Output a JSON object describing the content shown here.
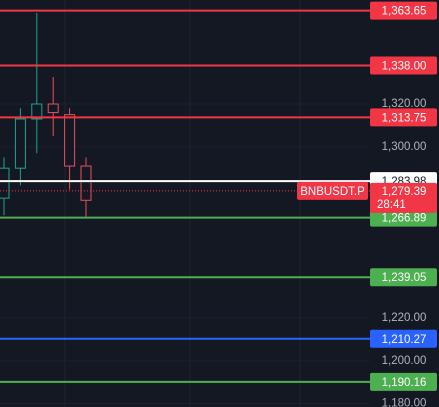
{
  "chart_data": {
    "type": "candlestick",
    "ylim": [
      1178.4,
      1368.6
    ],
    "yticks": [
      {
        "value": 1320,
        "label": "1,320.00"
      },
      {
        "value": 1300,
        "label": "1,300.00"
      },
      {
        "value": 1220,
        "label": "1,220.00"
      },
      {
        "value": 1200,
        "label": "1,200.00"
      },
      {
        "value": 1180,
        "label": "1,180.00"
      }
    ],
    "up_color": "#22a290",
    "down_color": "#e8505c",
    "open": [
      1276,
      1290,
      1313,
      1320,
      1315,
      1291
    ],
    "high": [
      1295,
      1318,
      1362.5,
      1332.6,
      1318,
      1295
    ],
    "low": [
      1268,
      1282,
      1297,
      1305,
      1280,
      1266.9
    ],
    "close": [
      1290,
      1313,
      1320,
      1316,
      1291,
      1275
    ],
    "levels": [
      {
        "value": 1363.65,
        "label": "1,363.65",
        "color": "#f23645"
      },
      {
        "value": 1338.0,
        "label": "1,338.00",
        "color": "#f23645"
      },
      {
        "value": 1313.75,
        "label": "1,313.75",
        "color": "#f23645"
      },
      {
        "value": 1283.98,
        "label": "1,283.98",
        "color": "#ffffff"
      },
      {
        "value": 1266.89,
        "label": "1,266.89",
        "color": "#4caf50"
      },
      {
        "value": 1239.05,
        "label": "1,239.05",
        "color": "#4caf50"
      },
      {
        "value": 1210.27,
        "label": "1,210.27",
        "color": "#2962ff"
      },
      {
        "value": 1190.16,
        "label": "1,190.16",
        "color": "#4caf50"
      }
    ],
    "current": {
      "symbol": "BNBUSDT.P",
      "value": 1279.39,
      "label": "1,279.39",
      "countdown": "28:41",
      "color": "#f23645"
    }
  }
}
